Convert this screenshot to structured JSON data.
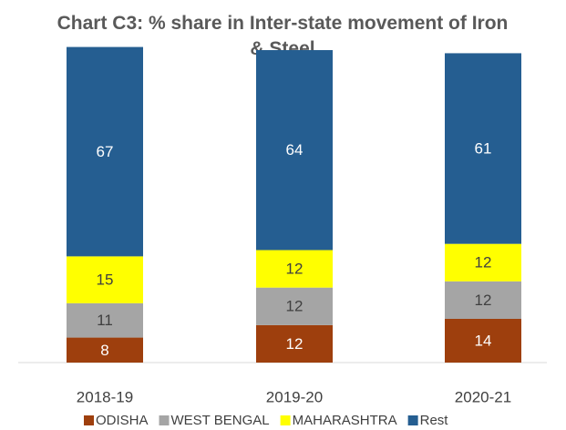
{
  "chart_data": {
    "type": "stacked_bar",
    "title": "Chart C3: % share in Inter-state movement of Iron & Steel",
    "categories": [
      "2018-19",
      "2019-20",
      "2020-21"
    ],
    "series": [
      {
        "name": "ODISHA",
        "color": "#9e3f0d",
        "values": [
          8,
          12,
          14
        ]
      },
      {
        "name": "WEST BENGAL",
        "color": "#a5a5a5",
        "values": [
          11,
          12,
          12
        ]
      },
      {
        "name": "MAHARASHTRA",
        "color": "#ffff00",
        "values": [
          15,
          12,
          12
        ]
      },
      {
        "name": "Rest",
        "color": "#255e91",
        "values": [
          67,
          64,
          61
        ]
      }
    ],
    "ylim": [
      0,
      100
    ]
  }
}
